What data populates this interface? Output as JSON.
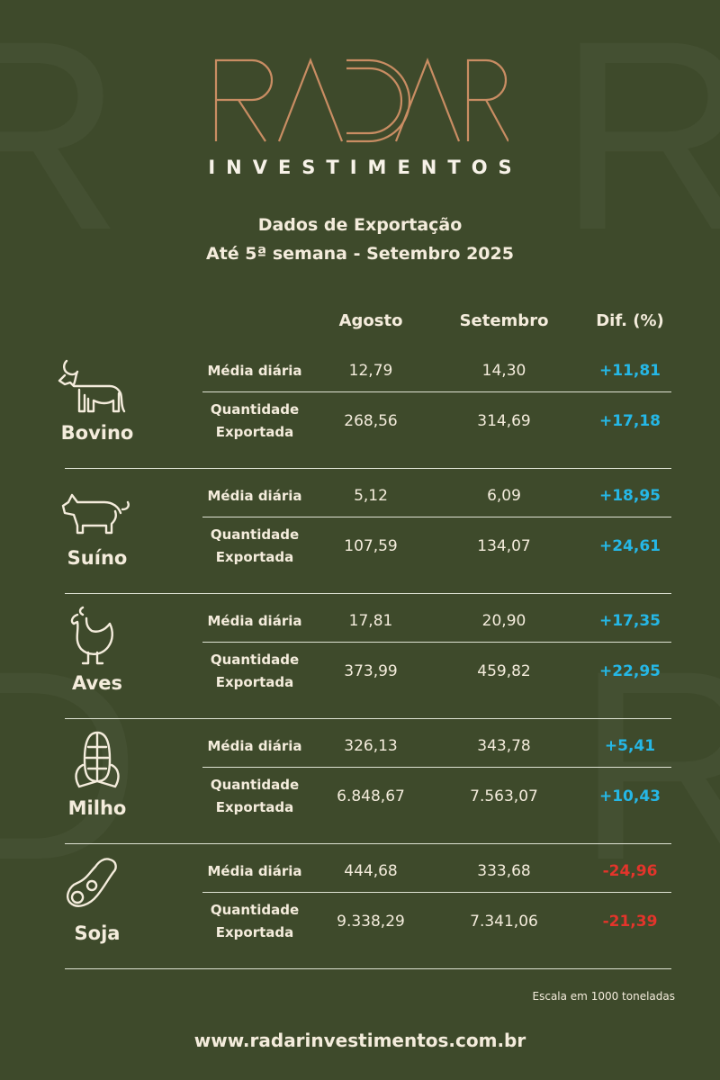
{
  "brand": {
    "name": "RADAR",
    "subtitle": "INVESTIMENTOS",
    "colors": {
      "gold": "#c98d63",
      "background": "#3e4a2b",
      "positive": "#25b7e6",
      "negative": "#e3342b"
    }
  },
  "title": {
    "line1": "Dados de Exportação",
    "line2": "Até 5ª semana - Setembro 2025"
  },
  "columns": [
    "Agosto",
    "Setembro",
    "Dif. (%)"
  ],
  "row_labels": {
    "daily": "Média diária",
    "qty1": "Quantidade",
    "qty2": "Exportada"
  },
  "sections": [
    {
      "name": "Bovino",
      "icon": "cow-icon",
      "daily": [
        "12,79",
        "14,30",
        "+11,81"
      ],
      "qty": [
        "268,56",
        "314,69",
        "+17,18"
      ]
    },
    {
      "name": "Suíno",
      "icon": "pig-icon",
      "daily": [
        "5,12",
        "6,09",
        "+18,95"
      ],
      "qty": [
        "107,59",
        "134,07",
        "+24,61"
      ]
    },
    {
      "name": "Aves",
      "icon": "chicken-icon",
      "daily": [
        "17,81",
        "20,90",
        "+17,35"
      ],
      "qty": [
        "373,99",
        "459,82",
        "+22,95"
      ]
    },
    {
      "name": "Milho",
      "icon": "corn-icon",
      "daily": [
        "326,13",
        "343,78",
        "+5,41"
      ],
      "qty": [
        "6.848,67",
        "7.563,07",
        "+10,43"
      ]
    },
    {
      "name": "Soja",
      "icon": "soybean-icon",
      "daily": [
        "444,68",
        "333,68",
        "-24,96"
      ],
      "qty": [
        "9.338,29",
        "7.341,06",
        "-21,39"
      ]
    }
  ],
  "footer": {
    "scale": "Escala em 1000 toneladas",
    "website": "www.radarinvestimentos.com.br"
  }
}
